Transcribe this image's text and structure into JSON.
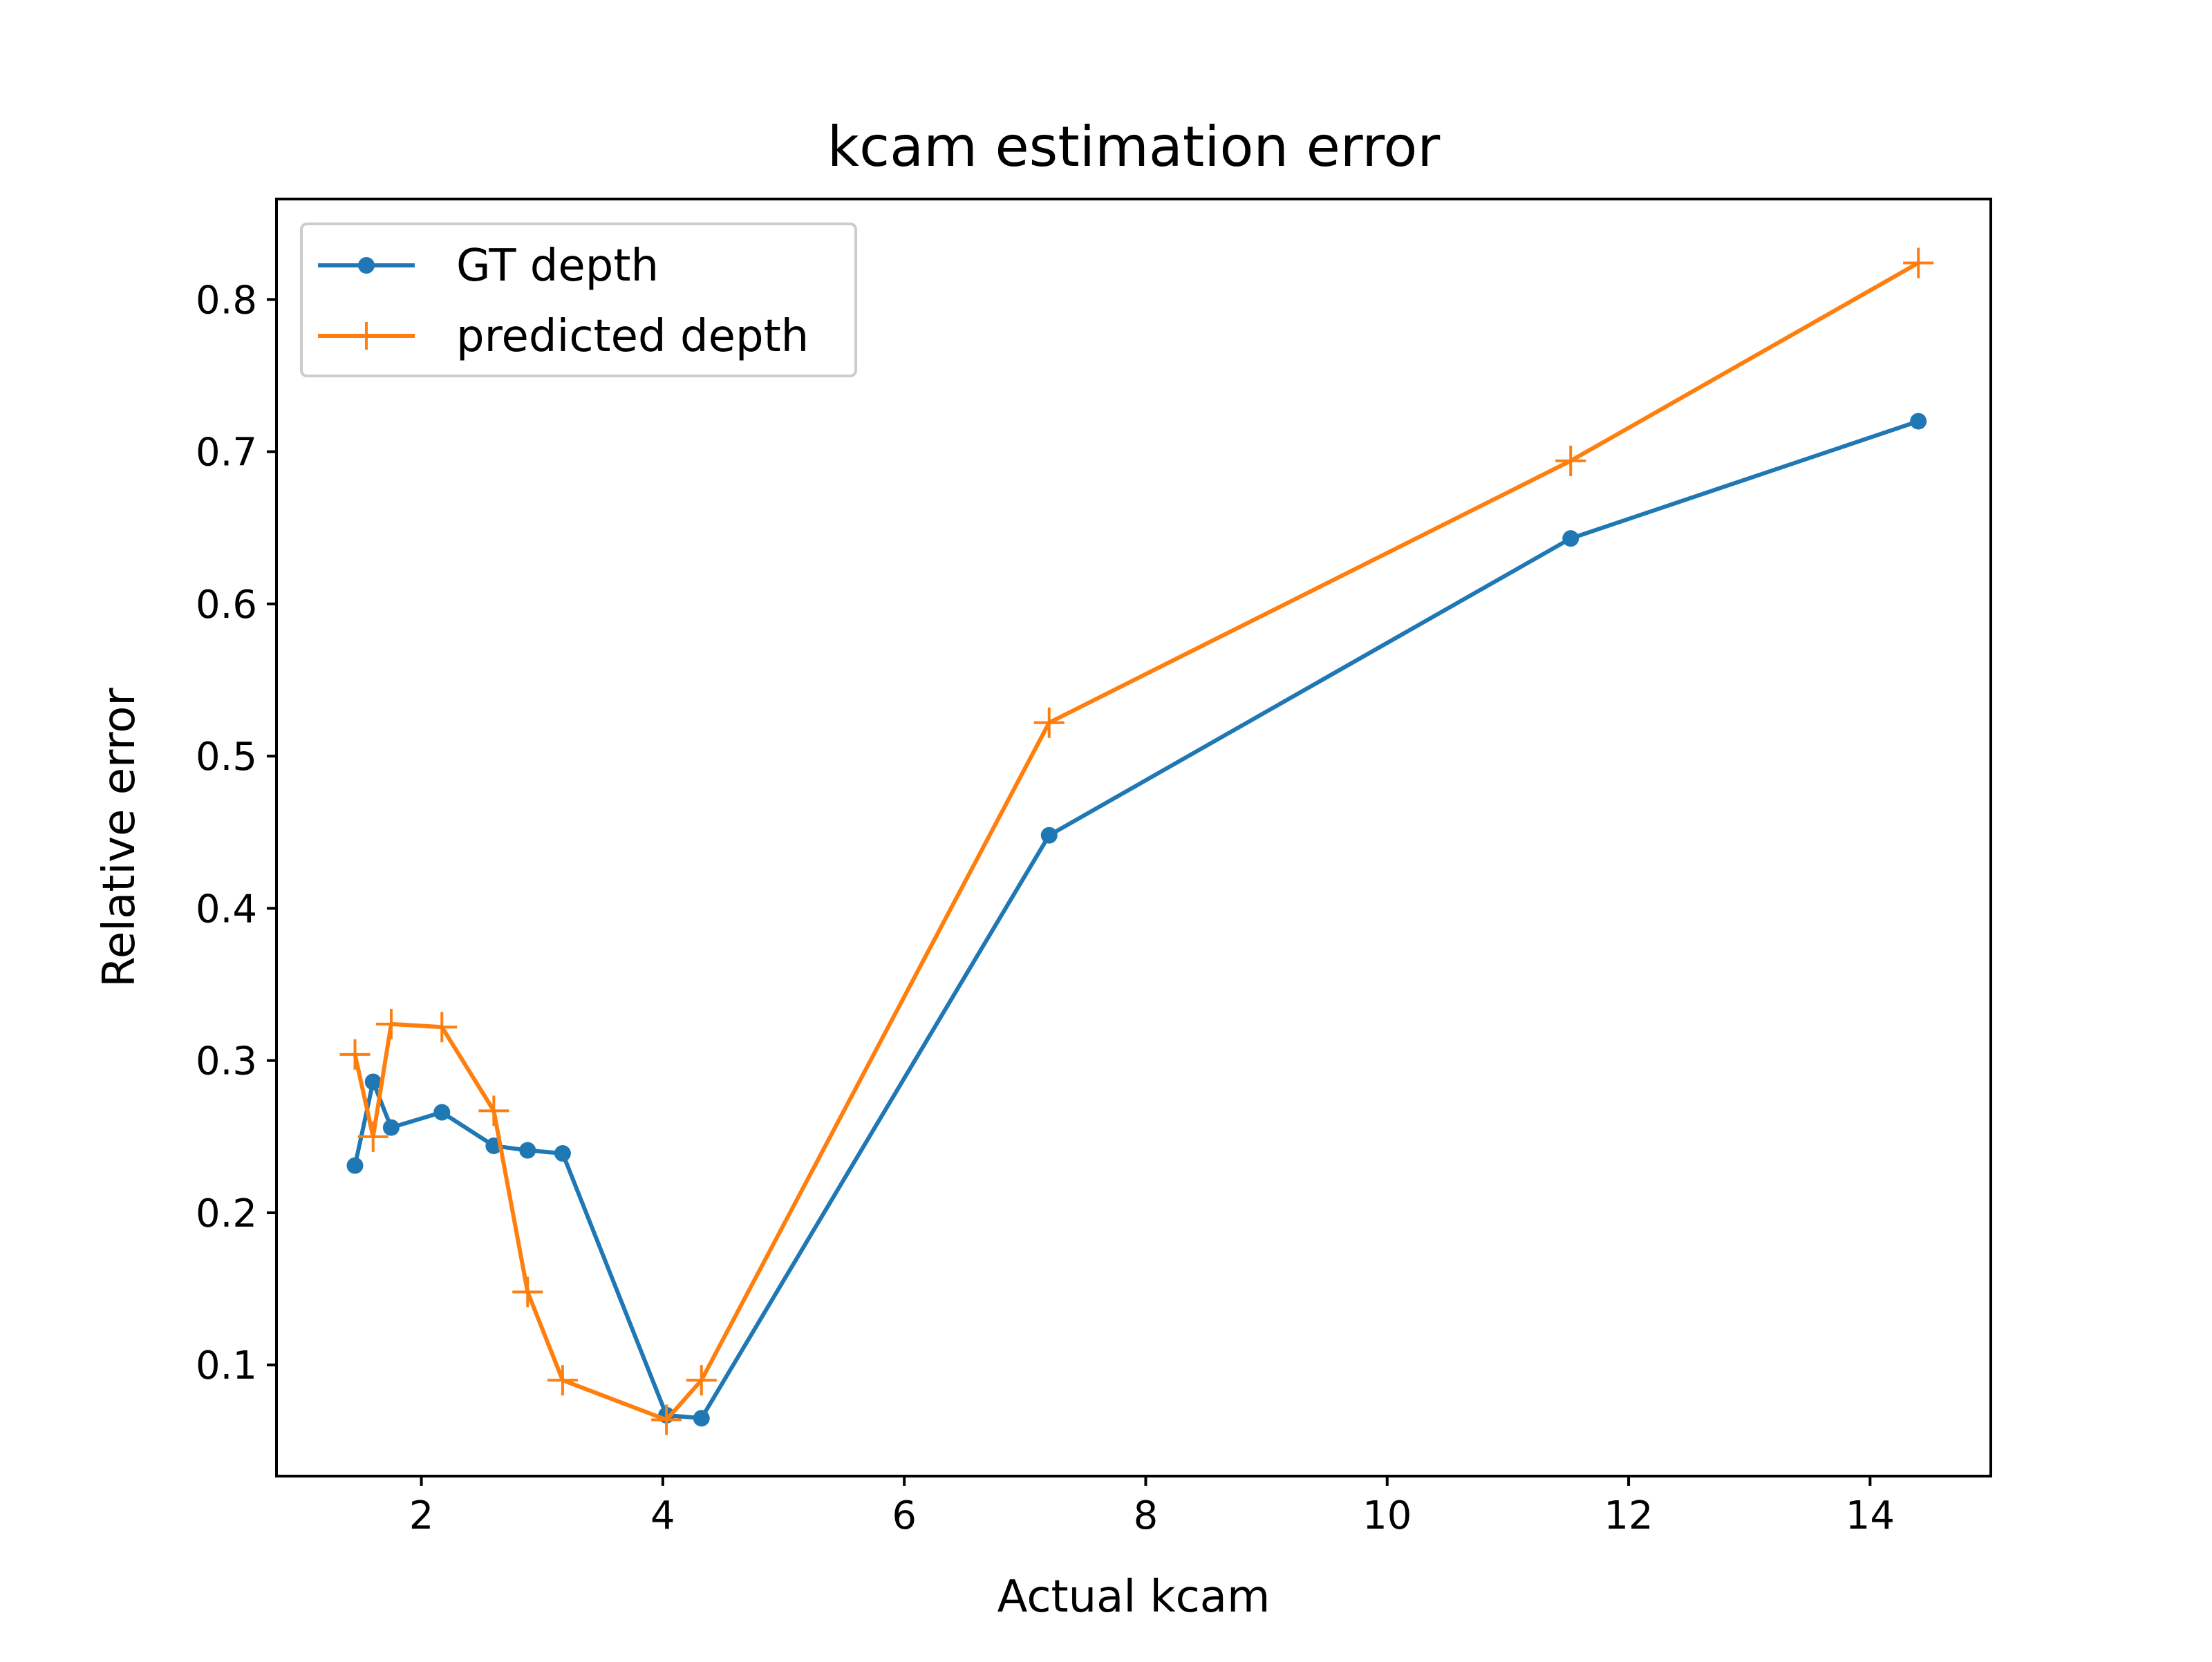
{
  "chart_data": {
    "type": "line",
    "title": "kcam estimation error",
    "xlabel": "Actual kcam",
    "ylabel": "Relative error",
    "xlim": [
      0.8,
      15.0
    ],
    "ylim": [
      0.027,
      0.866
    ],
    "xticks": [
      2,
      4,
      6,
      8,
      10,
      12,
      14
    ],
    "yticks": [
      0.1,
      0.2,
      0.3,
      0.4,
      0.5,
      0.6,
      0.7,
      0.8
    ],
    "xtick_labels": [
      "2",
      "4",
      "6",
      "8",
      "10",
      "12",
      "14"
    ],
    "ytick_labels": [
      "0.1",
      "0.2",
      "0.3",
      "0.4",
      "0.5",
      "0.6",
      "0.7",
      "0.8"
    ],
    "grid": false,
    "legend_position": "upper-left",
    "series": [
      {
        "name": "GT depth",
        "color": "#1f77b4",
        "marker": "circle",
        "x": [
          1.45,
          1.6,
          1.75,
          2.17,
          2.6,
          2.88,
          3.17,
          4.03,
          4.32,
          7.2,
          11.52,
          14.4
        ],
        "y": [
          0.231,
          0.286,
          0.256,
          0.266,
          0.244,
          0.241,
          0.239,
          0.067,
          0.065,
          0.448,
          0.643,
          0.72
        ]
      },
      {
        "name": "predicted depth",
        "color": "#ff7f0e",
        "marker": "plus",
        "x": [
          1.45,
          1.6,
          1.75,
          2.17,
          2.6,
          2.88,
          3.17,
          4.03,
          4.32,
          7.2,
          11.52,
          14.4
        ],
        "y": [
          0.304,
          0.25,
          0.324,
          0.322,
          0.267,
          0.148,
          0.09,
          0.064,
          0.09,
          0.522,
          0.694,
          0.824
        ]
      }
    ]
  }
}
